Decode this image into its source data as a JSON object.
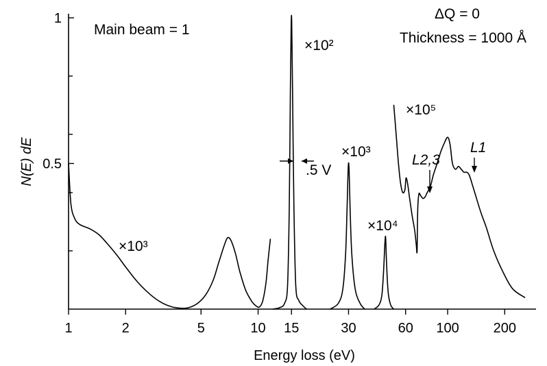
{
  "chart_data": {
    "type": "line",
    "title": "",
    "xlabel": "Energy loss (eV)",
    "ylabel": "N(E) dE",
    "x_scale": "log",
    "xlim": [
      1,
      300
    ],
    "ylim": [
      0,
      1
    ],
    "x_ticks": [
      {
        "value": 1,
        "label": "1"
      },
      {
        "value": 2,
        "label": "2"
      },
      {
        "value": 5,
        "label": "5"
      },
      {
        "value": 10,
        "label": "10"
      },
      {
        "value": 15,
        "label": "15"
      },
      {
        "value": 30,
        "label": "30"
      },
      {
        "value": 60,
        "label": "60"
      },
      {
        "value": 100,
        "label": "100"
      },
      {
        "value": 200,
        "label": "200"
      }
    ],
    "y_ticks": [
      {
        "value": 1,
        "label": "1"
      },
      {
        "value": 0.5,
        "label": "0.5"
      }
    ],
    "y_minor_ticks": [
      0.2,
      0.4,
      0.6,
      0.8
    ],
    "grid": false,
    "legend": "none",
    "series": [
      {
        "label": "×10³",
        "x": [
          1.0,
          1.03,
          1.08,
          1.15,
          1.3,
          1.45,
          1.6,
          1.8,
          2.0,
          2.3,
          2.7,
          3.1,
          3.5,
          3.9,
          4.3,
          4.8,
          5.3,
          5.8,
          6.2,
          6.6,
          6.9,
          7.2,
          7.6,
          8.0,
          8.6,
          9.3,
          9.8,
          10.2,
          10.6,
          11.0,
          11.3,
          11.6
        ],
        "y": [
          0.5,
          0.36,
          0.31,
          0.29,
          0.275,
          0.255,
          0.225,
          0.185,
          0.145,
          0.095,
          0.05,
          0.022,
          0.008,
          0.003,
          0.005,
          0.02,
          0.05,
          0.1,
          0.16,
          0.215,
          0.245,
          0.235,
          0.19,
          0.13,
          0.065,
          0.025,
          0.01,
          0.008,
          0.03,
          0.09,
          0.17,
          0.24
        ]
      },
      {
        "label": "×10²",
        "x": [
          12.0,
          13.0,
          13.8,
          14.3,
          14.6,
          14.8,
          14.95,
          15.05,
          15.2,
          15.45,
          15.8,
          16.4,
          17.2,
          18.0
        ],
        "y": [
          0.0,
          0.005,
          0.02,
          0.08,
          0.35,
          0.75,
          0.98,
          0.98,
          0.75,
          0.35,
          0.08,
          0.03,
          0.012,
          0.0
        ]
      },
      {
        "label": "×10³",
        "x": [
          24.0,
          26.5,
          28.0,
          29.0,
          29.5,
          29.9,
          30.2,
          30.6,
          31.2,
          32.5,
          34.5,
          36.5
        ],
        "y": [
          0.0,
          0.02,
          0.07,
          0.2,
          0.36,
          0.49,
          0.48,
          0.34,
          0.19,
          0.07,
          0.02,
          0.0
        ]
      },
      {
        "label": "×10⁴",
        "x": [
          41.0,
          43.5,
          45.0,
          46.0,
          46.7,
          47.1,
          47.6,
          48.5,
          50.0,
          52.0
        ],
        "y": [
          0.0,
          0.015,
          0.05,
          0.14,
          0.23,
          0.245,
          0.16,
          0.06,
          0.015,
          0.0
        ]
      },
      {
        "label": "×10⁵",
        "x": [
          52.0,
          53.5,
          55.0,
          56.5,
          58.0,
          59.5,
          60.3,
          61.5,
          63.0,
          65.0,
          67.0,
          68.3,
          69.0,
          69.5,
          70.5,
          72.0,
          74.0,
          76.0,
          78.0,
          81.0,
          84.0,
          88.0,
          92.0,
          96.0,
          100.0,
          103.0,
          106.0,
          110.0,
          114.0,
          118.0,
          122.0,
          126.0,
          130.0,
          136.0,
          142.0,
          150.0,
          160.0,
          175.0,
          195.0,
          220.0,
          255.0
        ],
        "y": [
          0.7,
          0.6,
          0.5,
          0.43,
          0.4,
          0.41,
          0.45,
          0.43,
          0.38,
          0.32,
          0.27,
          0.22,
          0.2,
          0.34,
          0.395,
          0.39,
          0.38,
          0.385,
          0.4,
          0.42,
          0.46,
          0.5,
          0.54,
          0.57,
          0.59,
          0.565,
          0.5,
          0.48,
          0.49,
          0.48,
          0.47,
          0.47,
          0.46,
          0.42,
          0.38,
          0.33,
          0.28,
          0.2,
          0.13,
          0.07,
          0.04
        ]
      }
    ],
    "annotations": {
      "main_beam": "Main beam = 1",
      "delta_q": "ΔQ = 0",
      "thickness": "Thickness = 1000 Å",
      "fwhm": ".5 V",
      "edge_l23": "L2,3",
      "edge_l1": "L1"
    }
  }
}
